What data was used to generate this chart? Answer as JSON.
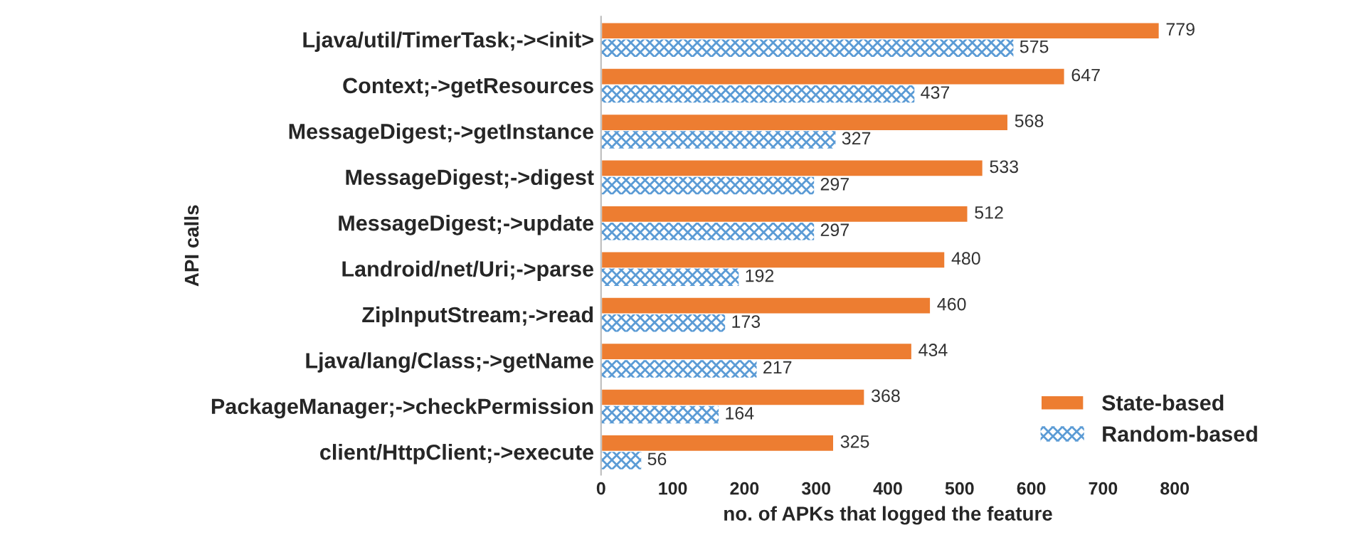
{
  "chart_data": {
    "type": "bar",
    "orientation": "horizontal",
    "ylabel": "API calls",
    "xlabel": "no. of APKs that logged the feature",
    "categories": [
      "Ljava/util/TimerTask;-><init>",
      "Context;->getResources",
      "MessageDigest;->getInstance",
      "MessageDigest;->digest",
      "MessageDigest;->update",
      "Landroid/net/Uri;->parse",
      "ZipInputStream;->read",
      "Ljava/lang/Class;->getName",
      "PackageManager;->checkPermission",
      "client/HttpClient;->execute"
    ],
    "series": [
      {
        "name": "State-based",
        "color": "#ed7d31",
        "values": [
          779,
          647,
          568,
          533,
          512,
          480,
          460,
          434,
          368,
          325
        ]
      },
      {
        "name": "Random-based",
        "color": "#5b9bd5",
        "values": [
          575,
          437,
          327,
          297,
          297,
          192,
          173,
          217,
          164,
          56
        ]
      }
    ],
    "xlim": [
      0,
      800
    ],
    "xticks": [
      0,
      100,
      200,
      300,
      400,
      500,
      600,
      700,
      800
    ],
    "grid": false,
    "legend": "bottom right",
    "data_labels": true
  }
}
